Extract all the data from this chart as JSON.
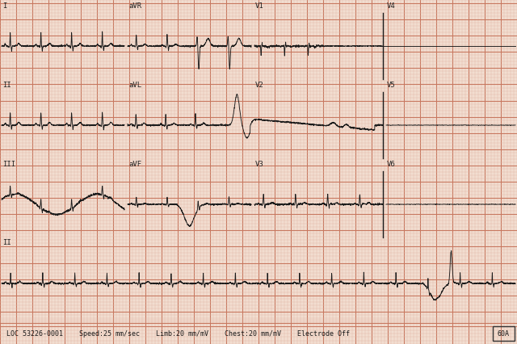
{
  "bg_color": "#f2ddd0",
  "minor_grid_color": "#e0b8a8",
  "major_grid_color": "#c87860",
  "ecg_color": "#1a1a1a",
  "fig_width": 6.4,
  "fig_height": 4.26,
  "dpi": 100,
  "footer_text": "LOC 53226-0001    Speed:25 mm/sec    Limb:20 mm/mV    Chest:20 mm/mV    Electrode Off",
  "footer_box": "60A",
  "col_splits": [
    0.0,
    0.245,
    0.49,
    0.745,
    1.0
  ],
  "row_labels": [
    [
      "I",
      "aVR",
      "V1",
      "V4"
    ],
    [
      "II",
      "aVL",
      "V2",
      "V5"
    ],
    [
      "III",
      "aVF",
      "V3",
      "V6"
    ],
    [
      "II",
      "",
      "",
      ""
    ]
  ]
}
